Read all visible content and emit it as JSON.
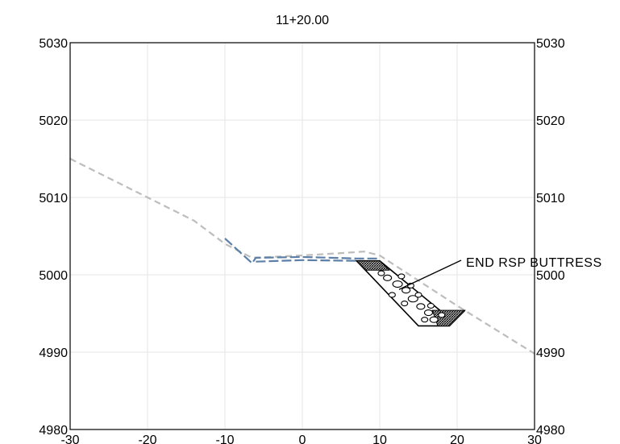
{
  "title": "11+20.00",
  "colors": {
    "grid": "#e6e6e6",
    "existing_ground": "#bdbdbd",
    "proposed": "#5b7fa6",
    "riprap": "#000000"
  },
  "axes": {
    "x_ticks": [
      "-30",
      "-20",
      "-10",
      "0",
      "10",
      "20",
      "30"
    ],
    "y_ticks_left": [
      "5030",
      "5020",
      "5010",
      "5000",
      "4990",
      "4980"
    ],
    "y_ticks_right": [
      "5030",
      "5020",
      "5010",
      "5000",
      "4990",
      "4980"
    ]
  },
  "annotation": {
    "label": "END RSP BUTTRESS"
  },
  "chart_data": {
    "type": "line",
    "title": "11+20.00",
    "xlim": [
      -30,
      30
    ],
    "ylim": [
      4980,
      5030
    ],
    "grid": true,
    "x_ticks": [
      -30,
      -20,
      -10,
      0,
      10,
      20,
      30
    ],
    "y_ticks": [
      4980,
      4990,
      5000,
      5010,
      5020,
      5030
    ],
    "series": [
      {
        "style": "dashed",
        "color": "#bdbdbd",
        "x": [
          -30,
          -20,
          -14,
          -10,
          -6.5,
          0,
          5,
          8,
          10,
          20,
          30
        ],
        "y": [
          5015,
          5010,
          5007,
          5004,
          5002.2,
          5002.5,
          5002.8,
          5003,
          5002.5,
          4996,
          4989.8
        ]
      },
      {
        "style": "dashed",
        "color": "#5b7fa6",
        "x": [
          -10,
          -6.5,
          -6,
          0,
          7,
          10
        ],
        "y": [
          5004.7,
          5001.5,
          5002.2,
          5002.3,
          5002.1,
          5002.1
        ]
      },
      {
        "style": "dashed",
        "color": "#5b7fa6",
        "x": [
          -6,
          0,
          7,
          10
        ],
        "y": [
          5001.7,
          5001.9,
          5001.8,
          5001.7
        ]
      }
    ],
    "shapes": [
      {
        "kind": "riprap-buttress",
        "outline_x": [
          7,
          10,
          19,
          21,
          19,
          15,
          7
        ],
        "outline_y": [
          5001.8,
          5001.8,
          4994.4,
          4995.4,
          4993.4,
          4993.4,
          5001.8
        ]
      }
    ],
    "annotations": [
      {
        "text": "END RSP BUTTRESS",
        "x": 21,
        "y": 5001.8,
        "arrow_to_x": 12.5,
        "arrow_to_y": 4998.1
      }
    ]
  }
}
